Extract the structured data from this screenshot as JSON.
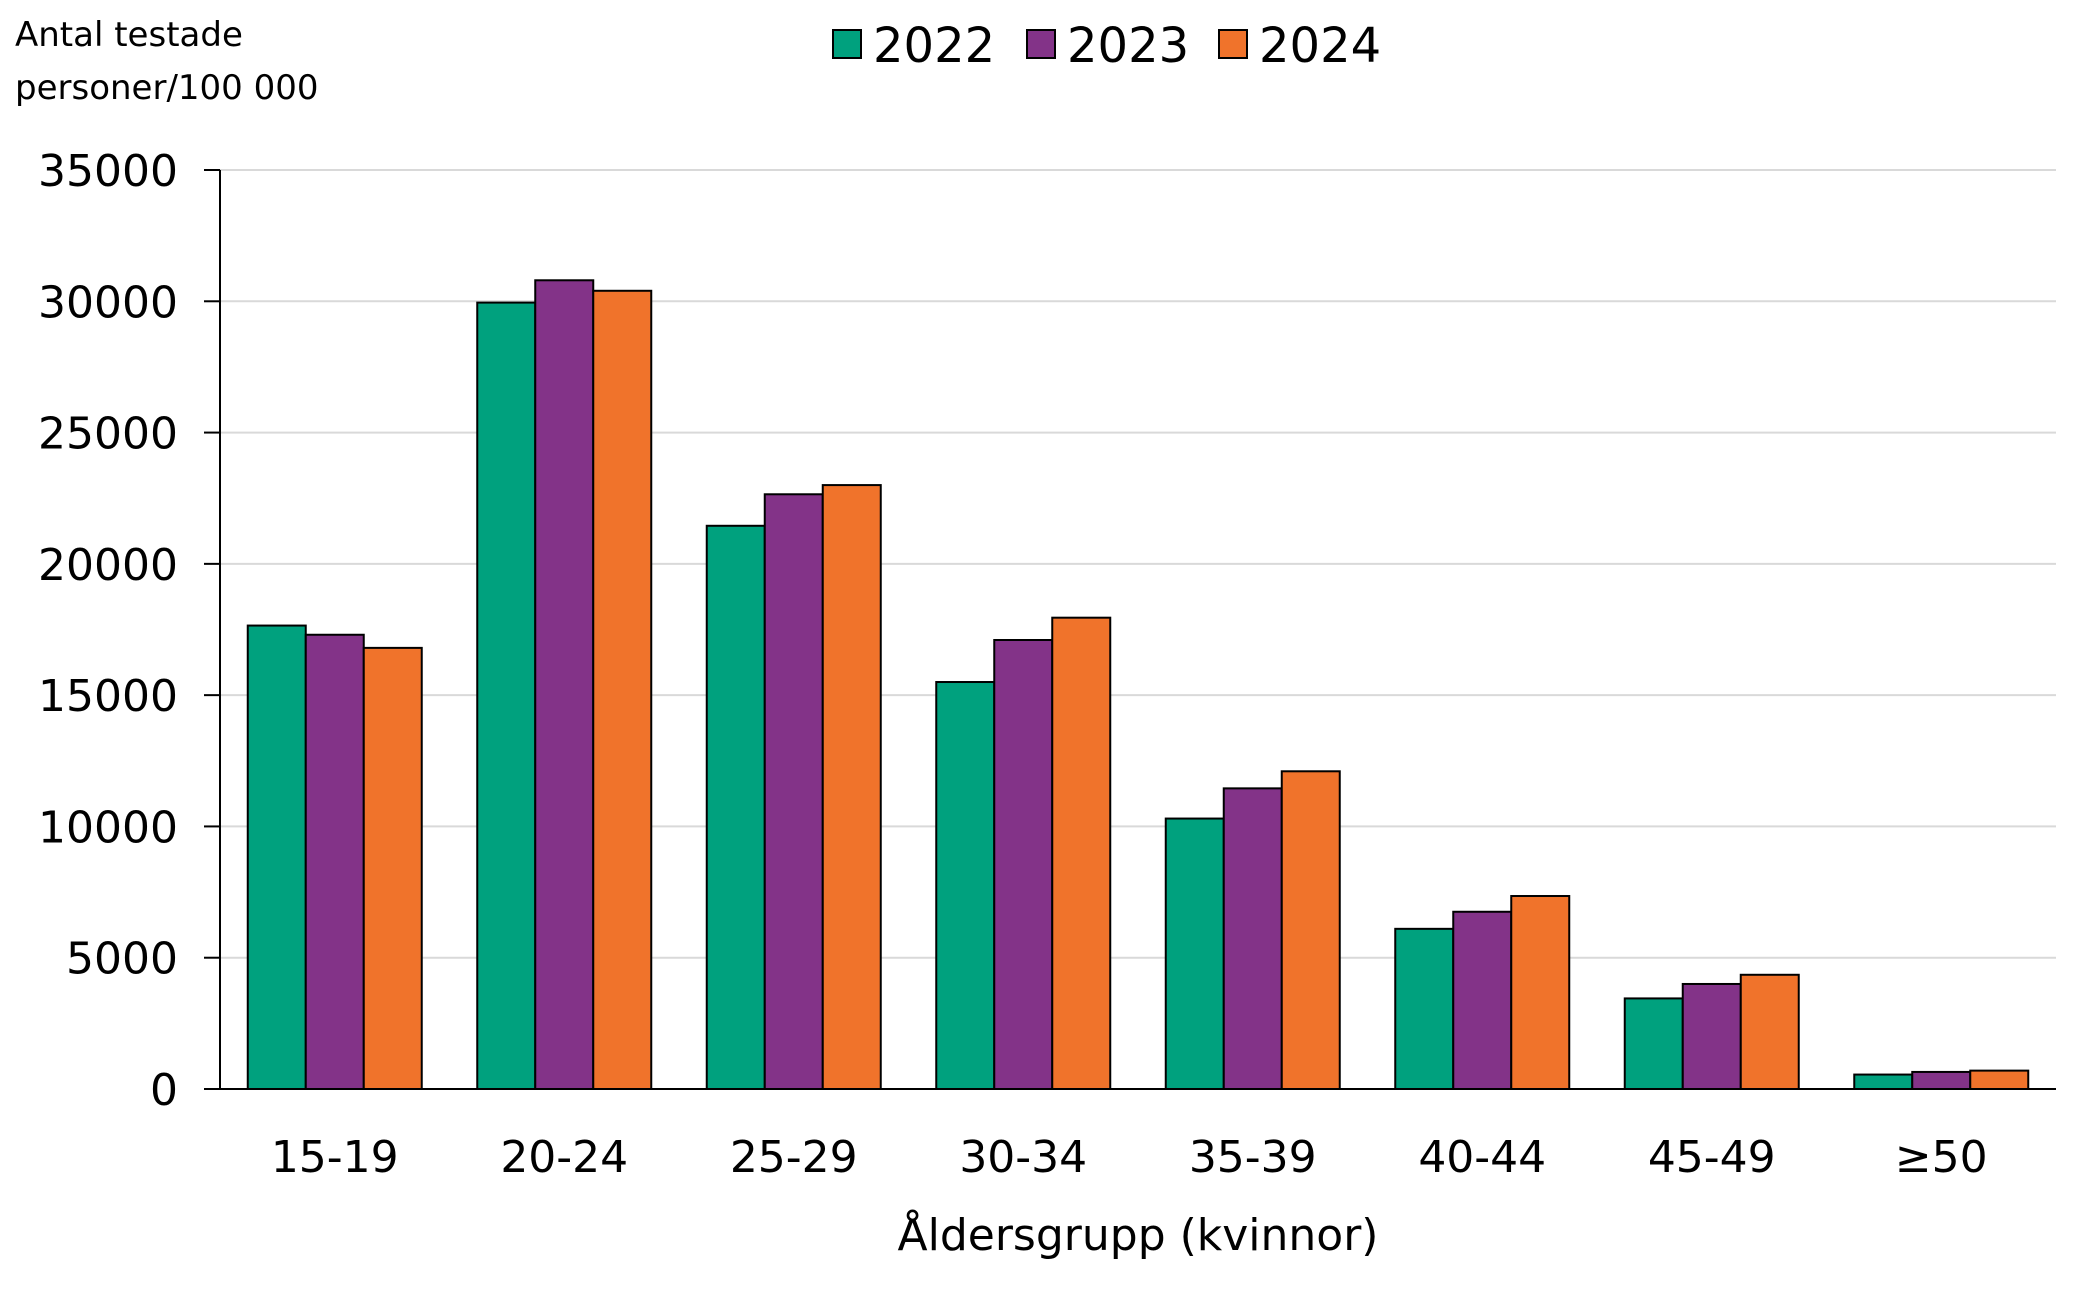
{
  "chart_data": {
    "type": "bar",
    "title": "",
    "ylabel_lines": [
      "Antal testade",
      "personer/100 000"
    ],
    "xlabel": "Åldersgrupp (kvinnor)",
    "categories": [
      "15-19",
      "20-24",
      "25-29",
      "30-34",
      "35-39",
      "40-44",
      "45-49",
      "≥50"
    ],
    "series": [
      {
        "name": "2022",
        "color": "#00A17E",
        "values": [
          17650,
          29950,
          21450,
          15500,
          10300,
          6100,
          3450,
          550
        ]
      },
      {
        "name": "2023",
        "color": "#833388",
        "values": [
          17300,
          30800,
          22650,
          17100,
          11450,
          6750,
          4000,
          650
        ]
      },
      {
        "name": "2024",
        "color": "#F0732B",
        "values": [
          16800,
          30400,
          23000,
          17950,
          12100,
          7350,
          4350,
          700
        ]
      }
    ],
    "ylim": [
      0,
      35000
    ],
    "yticks": [
      0,
      5000,
      10000,
      15000,
      20000,
      25000,
      30000,
      35000
    ],
    "grid": true,
    "legend_position": "top-center"
  }
}
